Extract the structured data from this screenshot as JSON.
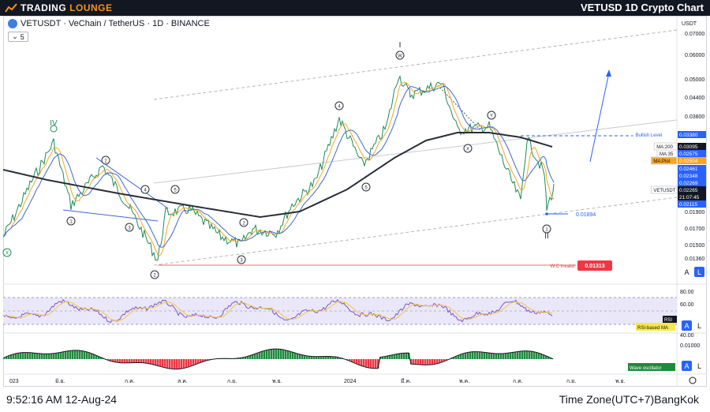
{
  "header": {
    "logo_text_1": "TRADING",
    "logo_text_2": "LOUNGE",
    "chart_title": "VETUSD 1D Crypto Chart"
  },
  "legend": {
    "symbol": "VETUSDT · VeChain / TetherUS · 1D · BINANCE",
    "counter": "5"
  },
  "price_axis": {
    "currency": "USDT",
    "ticks": [
      "0.07000",
      "0.06000",
      "0.05000",
      "0.04400",
      "0.03800",
      "0.02900",
      "0.02600",
      "0.01900",
      "0.01700",
      "0.01500",
      "0.01360"
    ]
  },
  "price_tags": [
    {
      "label": "Bullish Level",
      "value": "0.03380",
      "color": "#2962ff"
    },
    {
      "label": "MA:200",
      "value": "0.03095",
      "color": "#131722"
    },
    {
      "label": "MA:35",
      "value": "0.02575",
      "color": "#2962ff"
    },
    {
      "label": "MA:Plot",
      "value": "0.02504",
      "color": "#f5a623"
    },
    {
      "label": "",
      "value": "0.02461",
      "color": "#2962ff"
    },
    {
      "label": "",
      "value": "0.02348",
      "color": "#2962ff"
    },
    {
      "label": "",
      "value": "0.02269",
      "color": "#2962ff"
    },
    {
      "label": "VETUSDT",
      "value": "0.02265",
      "color": "#131722"
    },
    {
      "label": "",
      "value": "21:07:45",
      "color": "#131722"
    },
    {
      "label": "",
      "value": "0.02115",
      "color": "#2962ff"
    }
  ],
  "annotations": {
    "low_value": "0.01894",
    "invalid_label": "W.C Invalid",
    "invalid_value": "0.01313",
    "wave_labels_roman": [
      "IV",
      "I",
      "II"
    ],
    "wave_labels_circle": [
      "X",
      "1",
      "2",
      "3",
      "4",
      "5",
      "2",
      "3",
      "4",
      "5",
      "W",
      "X",
      "Y",
      "1",
      "2"
    ]
  },
  "rsi": {
    "label": "RSI",
    "ma_label": "RSI-based MA",
    "ticks": [
      "80.00",
      "60.00",
      "40.00"
    ]
  },
  "oscillator": {
    "label": "Wave oscillator",
    "tick": "0.01000"
  },
  "time_axis": [
    "023",
    "มิ.ย.",
    "ก.ค.",
    "ส.ค.",
    "ก.ย.",
    "พ.ย.",
    "2024",
    "มี.ค.",
    "พ.ค.",
    "ก.ค.",
    "ก.ย.",
    "พ.ย."
  ],
  "footer": {
    "clock": "9:52:16 AM 12-Aug-24",
    "timezone": "Time Zone(UTC+7)BangKok"
  },
  "buttons": {
    "auto": "A",
    "log": "L"
  }
}
